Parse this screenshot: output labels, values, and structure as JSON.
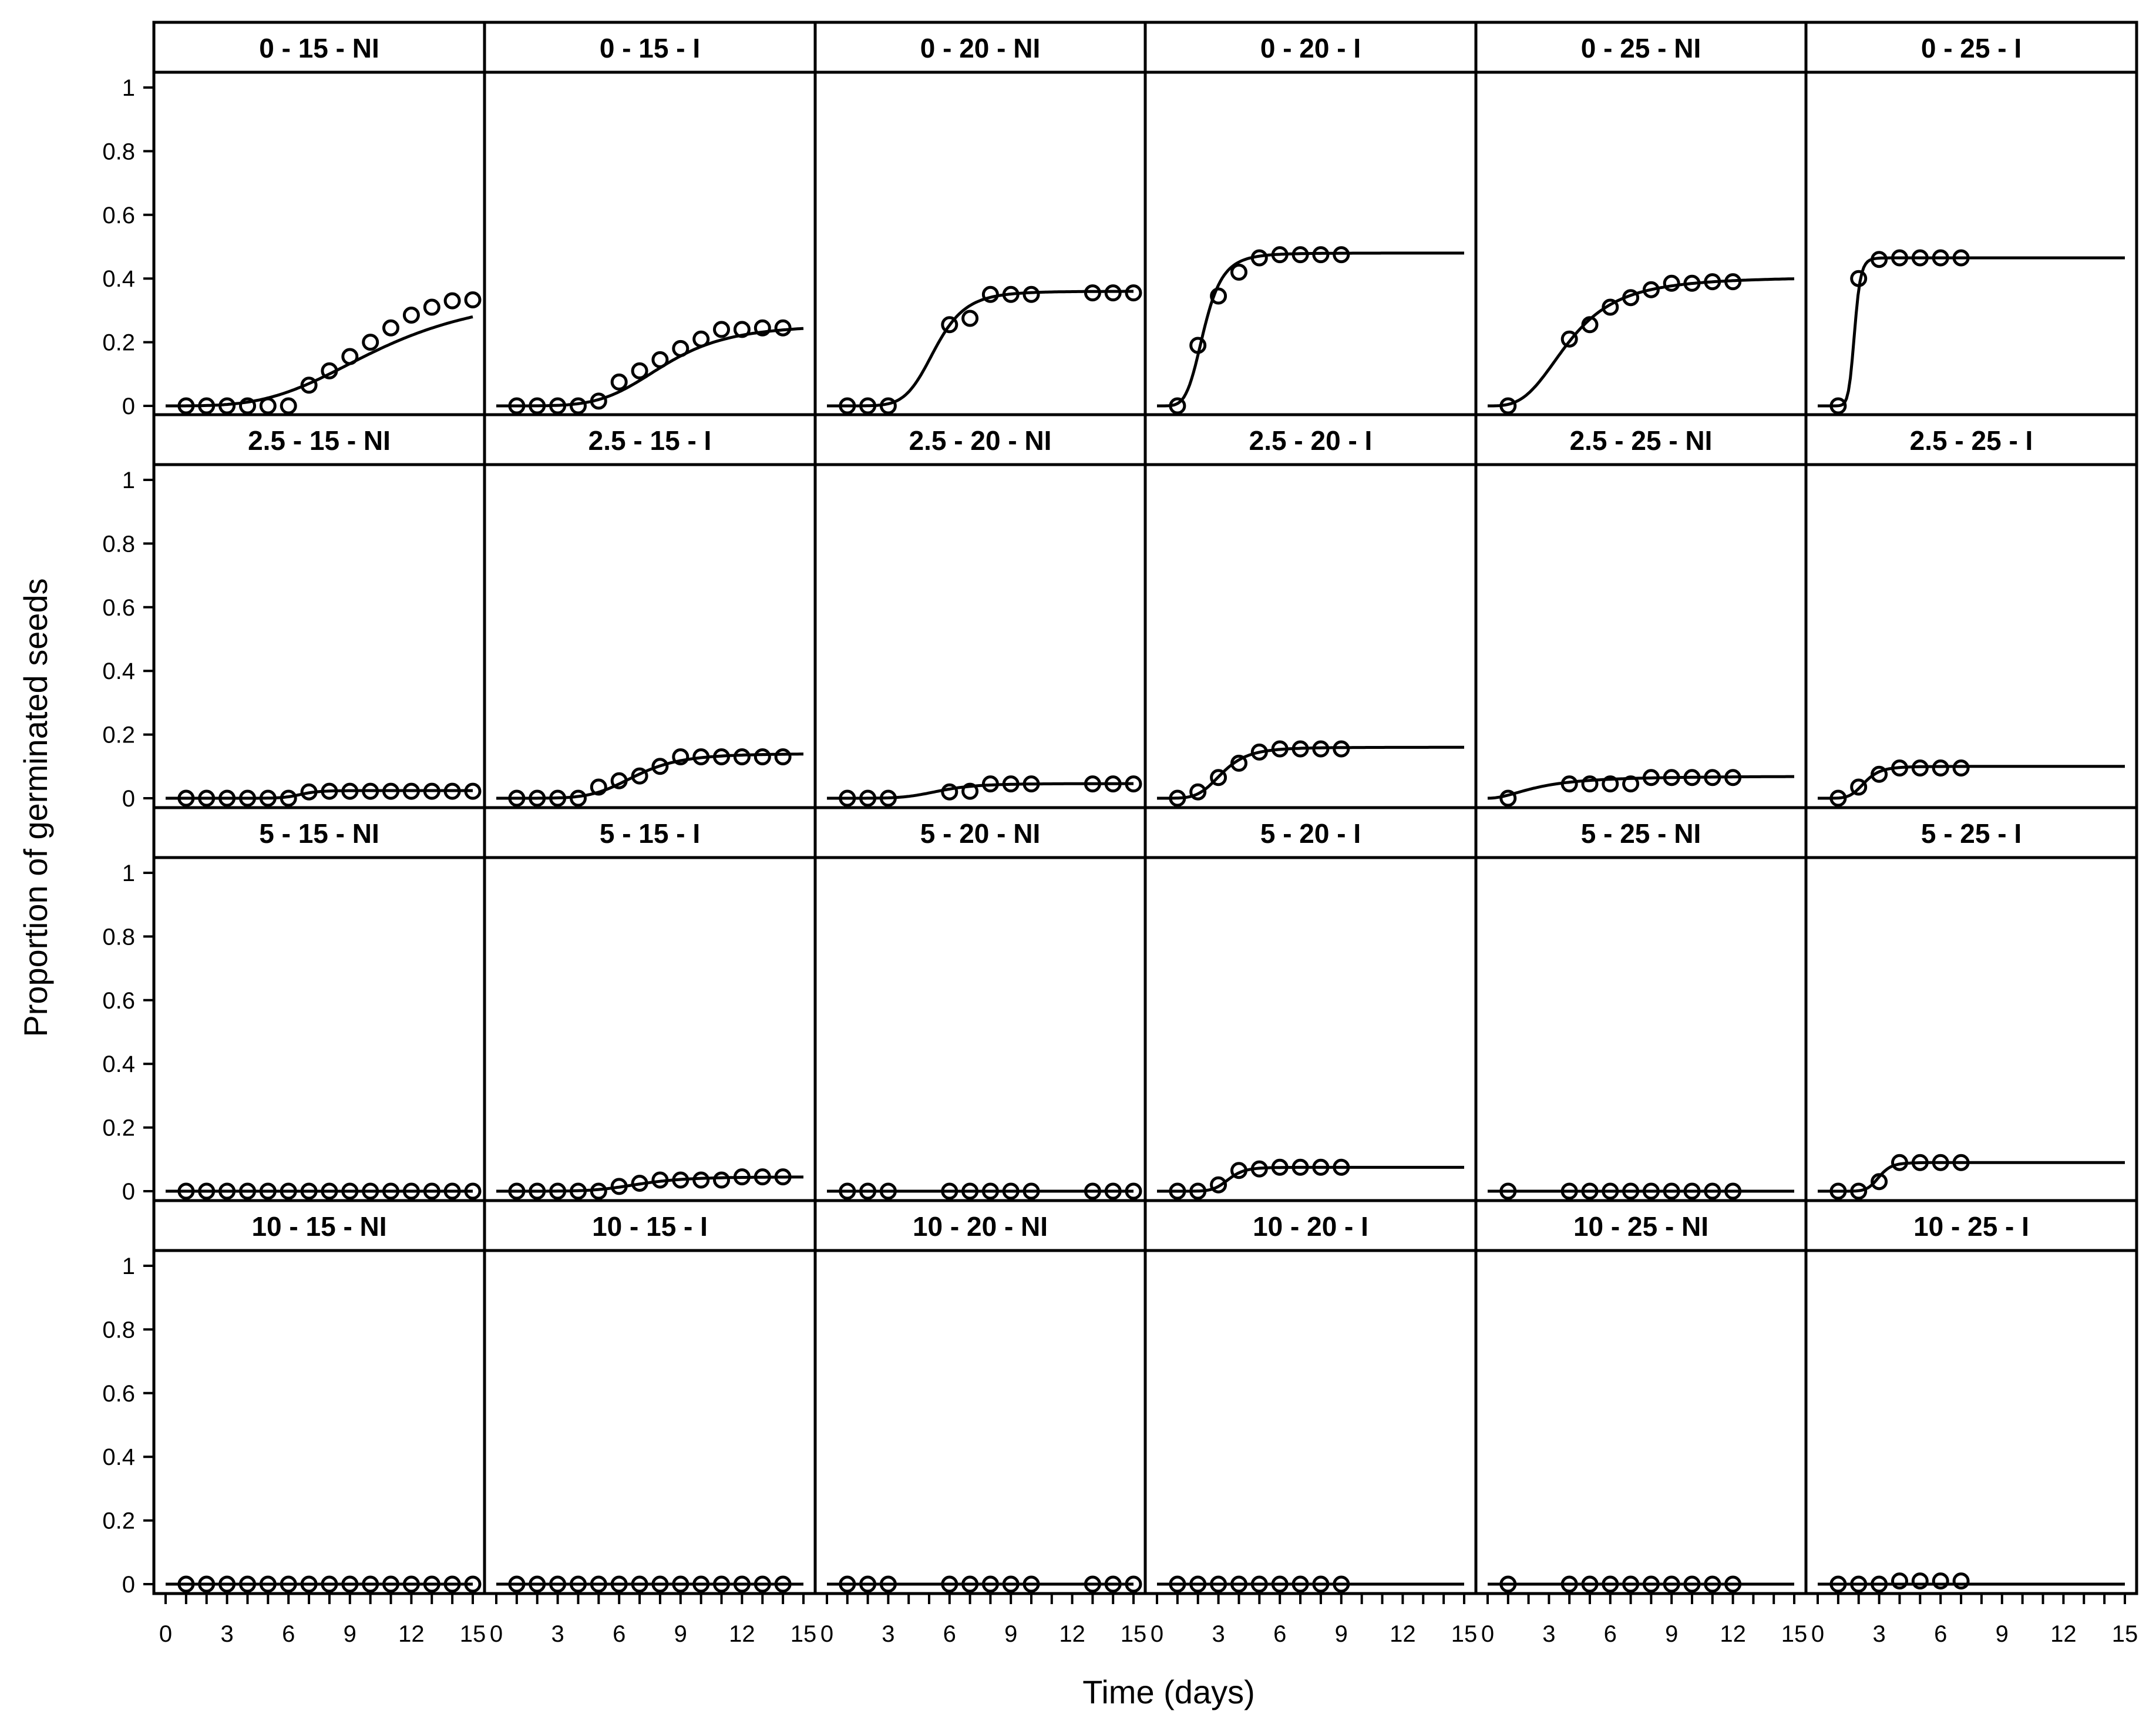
{
  "chart_data": {
    "type": "scatter",
    "xlabel": "Time (days)",
    "ylabel": "Proportion of germinated seeds",
    "xlim": [
      0,
      15
    ],
    "ylim": [
      0,
      1
    ],
    "x_ticks": [
      0,
      3,
      6,
      9,
      12,
      15
    ],
    "x_tick_labels": [
      "0",
      "3",
      "6",
      "9",
      "12",
      "15"
    ],
    "y_ticks": [
      0,
      0.2,
      0.4,
      0.6,
      0.8,
      1
    ],
    "y_tick_labels": [
      "0",
      "0.2",
      "0.4",
      "0.6",
      "0.8",
      "1"
    ],
    "panels": [
      {
        "title": "0 - 15 - NI",
        "points": [
          [
            1,
            0
          ],
          [
            2,
            0
          ],
          [
            3,
            0
          ],
          [
            4,
            0
          ],
          [
            5,
            0
          ],
          [
            6,
            0
          ],
          [
            7,
            0.065
          ],
          [
            8,
            0.11
          ],
          [
            9,
            0.155
          ],
          [
            10,
            0.2
          ],
          [
            11,
            0.245
          ],
          [
            12,
            0.285
          ],
          [
            13,
            0.31
          ],
          [
            14,
            0.33
          ],
          [
            15,
            0.333
          ]
        ],
        "fit": {
          "d": 0.36,
          "e": 10.5,
          "b": 3.5
        }
      },
      {
        "title": "0 - 15 - I",
        "points": [
          [
            1,
            0
          ],
          [
            2,
            0
          ],
          [
            3,
            0
          ],
          [
            4,
            0
          ],
          [
            5,
            0.015
          ],
          [
            6,
            0.075
          ],
          [
            7,
            0.11
          ],
          [
            8,
            0.145
          ],
          [
            9,
            0.18
          ],
          [
            10,
            0.21
          ],
          [
            11,
            0.24
          ],
          [
            12,
            0.24
          ],
          [
            13,
            0.245
          ],
          [
            14,
            0.245
          ]
        ],
        "fit": {
          "d": 0.255,
          "e": 8.2,
          "b": 5
        }
      },
      {
        "title": "0 - 20 - NI",
        "points": [
          [
            1,
            0
          ],
          [
            2,
            0
          ],
          [
            3,
            0
          ],
          [
            6,
            0.255
          ],
          [
            7,
            0.275
          ],
          [
            8,
            0.35
          ],
          [
            9,
            0.35
          ],
          [
            10,
            0.35
          ],
          [
            13,
            0.355
          ],
          [
            14,
            0.355
          ],
          [
            15,
            0.355
          ]
        ],
        "fit": {
          "d": 0.36,
          "e": 5.3,
          "b": 7
        }
      },
      {
        "title": "0 - 20 - I",
        "points": [
          [
            1,
            0
          ],
          [
            2,
            0.19
          ],
          [
            3,
            0.345
          ],
          [
            4,
            0.42
          ],
          [
            5,
            0.465
          ],
          [
            6,
            0.475
          ],
          [
            7,
            0.475
          ],
          [
            8,
            0.475
          ],
          [
            9,
            0.475
          ]
        ],
        "fit": {
          "d": 0.48,
          "e": 2.3,
          "b": 5
        }
      },
      {
        "title": "0 - 25 - NI",
        "points": [
          [
            1,
            0
          ],
          [
            4,
            0.21
          ],
          [
            5,
            0.255
          ],
          [
            6,
            0.31
          ],
          [
            7,
            0.34
          ],
          [
            8,
            0.365
          ],
          [
            9,
            0.385
          ],
          [
            10,
            0.385
          ],
          [
            11,
            0.39
          ],
          [
            12,
            0.39
          ]
        ],
        "fit": {
          "d": 0.405,
          "e": 4.0,
          "b": 3.2
        }
      },
      {
        "title": "0 - 25 - I",
        "points": [
          [
            1,
            0
          ],
          [
            2,
            0.4
          ],
          [
            3,
            0.46
          ],
          [
            4,
            0.465
          ],
          [
            5,
            0.465
          ],
          [
            6,
            0.465
          ],
          [
            7,
            0.465
          ]
        ],
        "fit": {
          "d": 0.465,
          "e": 1.8,
          "b": 12
        }
      },
      {
        "title": "2.5 - 15 - NI",
        "points": [
          [
            1,
            0
          ],
          [
            2,
            0
          ],
          [
            3,
            0
          ],
          [
            4,
            0
          ],
          [
            5,
            0
          ],
          [
            6,
            0
          ],
          [
            7,
            0.02
          ],
          [
            8,
            0.022
          ],
          [
            9,
            0.022
          ],
          [
            10,
            0.022
          ],
          [
            11,
            0.022
          ],
          [
            12,
            0.022
          ],
          [
            13,
            0.022
          ],
          [
            14,
            0.022
          ],
          [
            15,
            0.022
          ]
        ],
        "fit": {
          "d": 0.024,
          "e": 6.6,
          "b": 15
        }
      },
      {
        "title": "2.5 - 15 - I",
        "points": [
          [
            1,
            0
          ],
          [
            2,
            0
          ],
          [
            3,
            0
          ],
          [
            4,
            0
          ],
          [
            5,
            0.035
          ],
          [
            6,
            0.055
          ],
          [
            7,
            0.07
          ],
          [
            8,
            0.1
          ],
          [
            9,
            0.13
          ],
          [
            10,
            0.13
          ],
          [
            11,
            0.13
          ],
          [
            12,
            0.13
          ],
          [
            13,
            0.13
          ],
          [
            14,
            0.13
          ]
        ],
        "fit": {
          "d": 0.14,
          "e": 6.8,
          "b": 6
        }
      },
      {
        "title": "2.5 - 20 - NI",
        "points": [
          [
            1,
            0
          ],
          [
            2,
            0
          ],
          [
            3,
            0
          ],
          [
            6,
            0.02
          ],
          [
            7,
            0.022
          ],
          [
            8,
            0.045
          ],
          [
            9,
            0.045
          ],
          [
            10,
            0.045
          ],
          [
            13,
            0.045
          ],
          [
            14,
            0.045
          ],
          [
            15,
            0.045
          ]
        ],
        "fit": {
          "d": 0.046,
          "e": 5.5,
          "b": 6
        }
      },
      {
        "title": "2.5 - 20 - I",
        "points": [
          [
            1,
            0
          ],
          [
            2,
            0.02
          ],
          [
            3,
            0.065
          ],
          [
            4,
            0.11
          ],
          [
            5,
            0.145
          ],
          [
            6,
            0.155
          ],
          [
            7,
            0.155
          ],
          [
            8,
            0.155
          ],
          [
            9,
            0.155
          ]
        ],
        "fit": {
          "d": 0.16,
          "e": 3.2,
          "b": 5
        }
      },
      {
        "title": "2.5 - 25 - NI",
        "points": [
          [
            1,
            0
          ],
          [
            4,
            0.045
          ],
          [
            5,
            0.045
          ],
          [
            6,
            0.045
          ],
          [
            7,
            0.045
          ],
          [
            8,
            0.065
          ],
          [
            9,
            0.065
          ],
          [
            10,
            0.065
          ],
          [
            11,
            0.065
          ],
          [
            12,
            0.065
          ]
        ],
        "fit": {
          "d": 0.07,
          "e": 2.5,
          "b": 2
        }
      },
      {
        "title": "2.5 - 25 - I",
        "points": [
          [
            1,
            0
          ],
          [
            2,
            0.035
          ],
          [
            3,
            0.075
          ],
          [
            4,
            0.095
          ],
          [
            5,
            0.095
          ],
          [
            6,
            0.095
          ],
          [
            7,
            0.095
          ]
        ],
        "fit": {
          "d": 0.1,
          "e": 2.3,
          "b": 6
        }
      },
      {
        "title": "5 - 15 - NI",
        "points": [
          [
            1,
            0
          ],
          [
            2,
            0
          ],
          [
            3,
            0
          ],
          [
            4,
            0
          ],
          [
            5,
            0
          ],
          [
            6,
            0
          ],
          [
            7,
            0
          ],
          [
            8,
            0
          ],
          [
            9,
            0
          ],
          [
            10,
            0
          ],
          [
            11,
            0
          ],
          [
            12,
            0
          ],
          [
            13,
            0
          ],
          [
            14,
            0
          ],
          [
            15,
            0
          ]
        ],
        "fit": {
          "d": 0,
          "e": 5,
          "b": 5
        }
      },
      {
        "title": "5 - 15 - I",
        "points": [
          [
            1,
            0
          ],
          [
            2,
            0
          ],
          [
            3,
            0
          ],
          [
            4,
            0
          ],
          [
            5,
            0
          ],
          [
            6,
            0.015
          ],
          [
            7,
            0.025
          ],
          [
            8,
            0.035
          ],
          [
            9,
            0.035
          ],
          [
            10,
            0.035
          ],
          [
            11,
            0.035
          ],
          [
            12,
            0.045
          ],
          [
            13,
            0.045
          ],
          [
            14,
            0.045
          ]
        ],
        "fit": {
          "d": 0.045,
          "e": 7.0,
          "b": 6
        }
      },
      {
        "title": "5 - 20 - NI",
        "points": [
          [
            1,
            0
          ],
          [
            2,
            0
          ],
          [
            3,
            0
          ],
          [
            6,
            0
          ],
          [
            7,
            0
          ],
          [
            8,
            0
          ],
          [
            9,
            0
          ],
          [
            10,
            0
          ],
          [
            13,
            0
          ],
          [
            14,
            0
          ],
          [
            15,
            0
          ]
        ],
        "fit": {
          "d": 0,
          "e": 5,
          "b": 5
        }
      },
      {
        "title": "5 - 20 - I",
        "points": [
          [
            1,
            0
          ],
          [
            2,
            0
          ],
          [
            3,
            0.02
          ],
          [
            4,
            0.065
          ],
          [
            5,
            0.07
          ],
          [
            6,
            0.075
          ],
          [
            7,
            0.075
          ],
          [
            8,
            0.075
          ],
          [
            9,
            0.075
          ]
        ],
        "fit": {
          "d": 0.075,
          "e": 3.5,
          "b": 9
        }
      },
      {
        "title": "5 - 25 - NI",
        "points": [
          [
            1,
            0
          ],
          [
            4,
            0
          ],
          [
            5,
            0
          ],
          [
            6,
            0
          ],
          [
            7,
            0
          ],
          [
            8,
            0
          ],
          [
            9,
            0
          ],
          [
            10,
            0
          ],
          [
            11,
            0
          ],
          [
            12,
            0
          ]
        ],
        "fit": {
          "d": 0,
          "e": 5,
          "b": 5
        }
      },
      {
        "title": "5 - 25 - I",
        "points": [
          [
            1,
            0
          ],
          [
            2,
            0
          ],
          [
            3,
            0.03
          ],
          [
            4,
            0.09
          ],
          [
            5,
            0.09
          ],
          [
            6,
            0.09
          ],
          [
            7,
            0.09
          ]
        ],
        "fit": {
          "d": 0.09,
          "e": 3.0,
          "b": 10
        }
      },
      {
        "title": "10 - 15 - NI",
        "points": [
          [
            1,
            0
          ],
          [
            2,
            0
          ],
          [
            3,
            0
          ],
          [
            4,
            0
          ],
          [
            5,
            0
          ],
          [
            6,
            0
          ],
          [
            7,
            0
          ],
          [
            8,
            0
          ],
          [
            9,
            0
          ],
          [
            10,
            0
          ],
          [
            11,
            0
          ],
          [
            12,
            0
          ],
          [
            13,
            0
          ],
          [
            14,
            0
          ],
          [
            15,
            0
          ]
        ],
        "fit": {
          "d": 0,
          "e": 5,
          "b": 5
        }
      },
      {
        "title": "10 - 15 - I",
        "points": [
          [
            1,
            0
          ],
          [
            2,
            0
          ],
          [
            3,
            0
          ],
          [
            4,
            0
          ],
          [
            5,
            0
          ],
          [
            6,
            0
          ],
          [
            7,
            0
          ],
          [
            8,
            0
          ],
          [
            9,
            0
          ],
          [
            10,
            0
          ],
          [
            11,
            0
          ],
          [
            12,
            0
          ],
          [
            13,
            0
          ],
          [
            14,
            0
          ]
        ],
        "fit": {
          "d": 0,
          "e": 5,
          "b": 5
        }
      },
      {
        "title": "10 - 20 - NI",
        "points": [
          [
            1,
            0
          ],
          [
            2,
            0
          ],
          [
            3,
            0
          ],
          [
            6,
            0
          ],
          [
            7,
            0
          ],
          [
            8,
            0
          ],
          [
            9,
            0
          ],
          [
            10,
            0
          ],
          [
            13,
            0
          ],
          [
            14,
            0
          ],
          [
            15,
            0
          ]
        ],
        "fit": {
          "d": 0,
          "e": 5,
          "b": 5
        }
      },
      {
        "title": "10 - 20 - I",
        "points": [
          [
            1,
            0
          ],
          [
            2,
            0
          ],
          [
            3,
            0
          ],
          [
            4,
            0
          ],
          [
            5,
            0
          ],
          [
            6,
            0
          ],
          [
            7,
            0
          ],
          [
            8,
            0
          ],
          [
            9,
            0
          ]
        ],
        "fit": {
          "d": 0,
          "e": 5,
          "b": 5
        }
      },
      {
        "title": "10 - 25 - NI",
        "points": [
          [
            1,
            0
          ],
          [
            4,
            0
          ],
          [
            5,
            0
          ],
          [
            6,
            0
          ],
          [
            7,
            0
          ],
          [
            8,
            0
          ],
          [
            9,
            0
          ],
          [
            10,
            0
          ],
          [
            11,
            0
          ],
          [
            12,
            0
          ]
        ],
        "fit": {
          "d": 0,
          "e": 5,
          "b": 5
        }
      },
      {
        "title": "10 - 25 - I",
        "points": [
          [
            1,
            0
          ],
          [
            2,
            0
          ],
          [
            3,
            0
          ],
          [
            4,
            0.01
          ],
          [
            5,
            0.01
          ],
          [
            6,
            0.01
          ],
          [
            7,
            0.01
          ]
        ],
        "fit": {
          "d": 0,
          "e": 5,
          "b": 5
        }
      }
    ]
  }
}
